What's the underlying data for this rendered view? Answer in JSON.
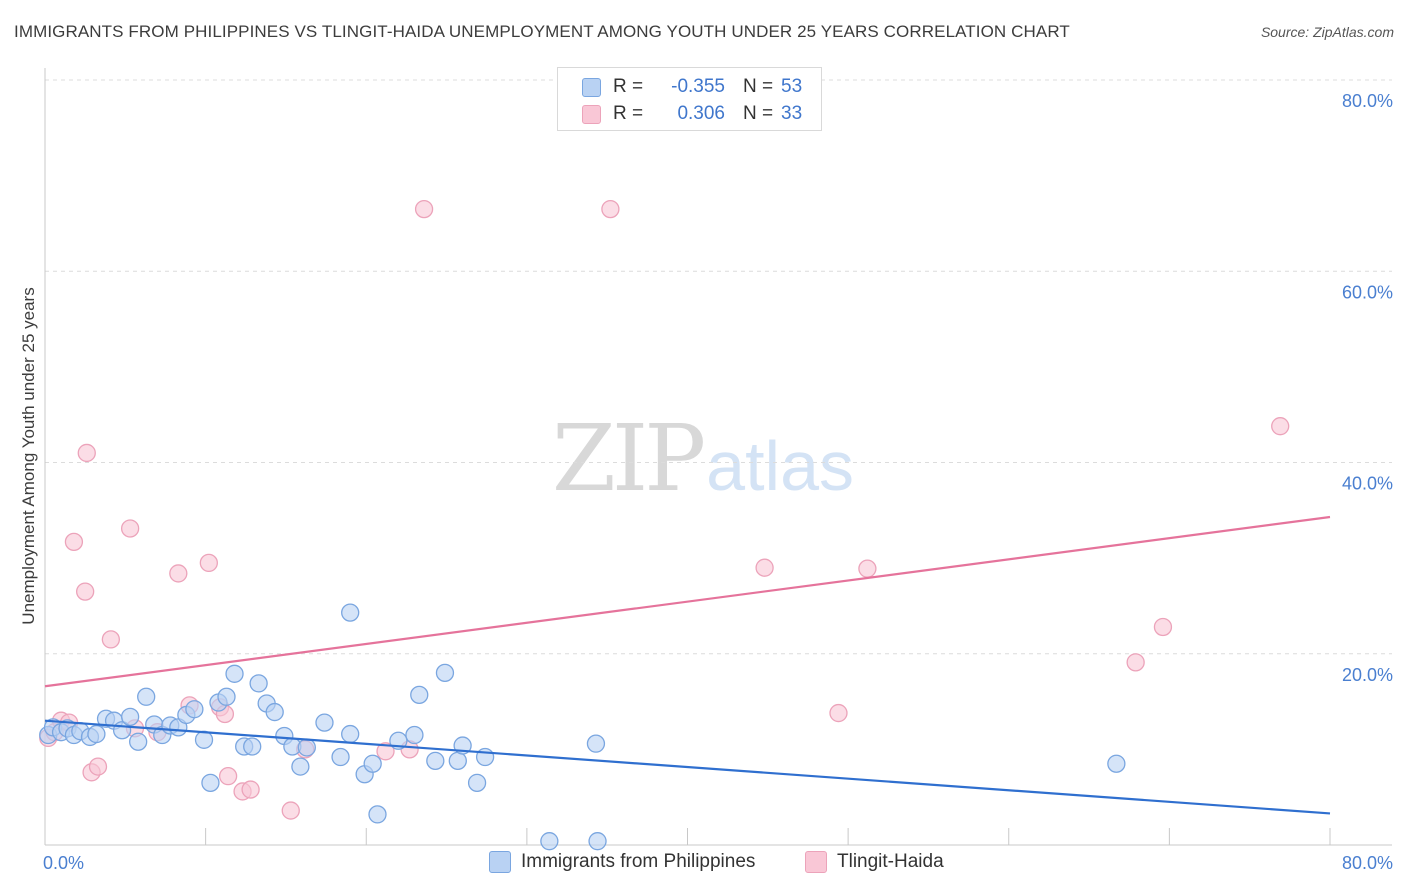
{
  "header": {
    "title": "IMMIGRANTS FROM PHILIPPINES VS TLINGIT-HAIDA UNEMPLOYMENT AMONG YOUTH UNDER 25 YEARS CORRELATION CHART",
    "source": "Source: ZipAtlas.com"
  },
  "watermark": {
    "zip": "ZIP",
    "atlas": "atlas"
  },
  "legend": {
    "philippines": {
      "r_label": "R =",
      "r_value": "-0.355",
      "n_label": "N =",
      "n_value": "53"
    },
    "tlingit": {
      "r_label": "R =",
      "r_value": "0.306",
      "n_label": "N =",
      "n_value": "33"
    }
  },
  "bottom_legend": {
    "philippines": "Immigrants from Philippines",
    "tlingit": "Tlingit-Haida"
  },
  "colors": {
    "blue_fill": "#b9d2f3",
    "blue_stroke": "#7aa6e0",
    "blue_line": "#2f6fcf",
    "pink_fill": "#f9c7d6",
    "pink_stroke": "#eca3ba",
    "pink_line": "#e5739b",
    "axis_text": "#4a7fd0"
  },
  "chart_data": {
    "type": "scatter",
    "title": "IMMIGRANTS FROM PHILIPPINES VS TLINGIT-HAIDA UNEMPLOYMENT AMONG YOUTH UNDER 25 YEARS CORRELATION CHART",
    "xlabel": "",
    "ylabel": "Unemployment Among Youth under 25 years",
    "xlim": [
      0,
      80
    ],
    "ylim": [
      0,
      80
    ],
    "x_tick_labels": [
      "0.0%",
      "80.0%"
    ],
    "y_ticks": [
      20,
      40,
      60,
      80
    ],
    "y_tick_labels": [
      "20.0%",
      "40.0%",
      "60.0%",
      "80.0%"
    ],
    "grid": true,
    "series": [
      {
        "name": "Immigrants from Philippines",
        "color": "#b9d2f3",
        "points": [
          {
            "x": 0.2,
            "y": 11.5
          },
          {
            "x": 0.5,
            "y": 12.3
          },
          {
            "x": 1.0,
            "y": 11.8
          },
          {
            "x": 1.4,
            "y": 12.2
          },
          {
            "x": 1.8,
            "y": 11.5
          },
          {
            "x": 2.2,
            "y": 11.9
          },
          {
            "x": 2.8,
            "y": 11.3
          },
          {
            "x": 3.2,
            "y": 11.6
          },
          {
            "x": 3.8,
            "y": 13.2
          },
          {
            "x": 4.3,
            "y": 13.0
          },
          {
            "x": 4.8,
            "y": 12.0
          },
          {
            "x": 5.3,
            "y": 13.4
          },
          {
            "x": 5.8,
            "y": 10.8
          },
          {
            "x": 6.3,
            "y": 15.5
          },
          {
            "x": 6.8,
            "y": 12.6
          },
          {
            "x": 7.3,
            "y": 11.5
          },
          {
            "x": 7.8,
            "y": 12.5
          },
          {
            "x": 8.3,
            "y": 12.3
          },
          {
            "x": 8.8,
            "y": 13.6
          },
          {
            "x": 9.3,
            "y": 14.2
          },
          {
            "x": 9.9,
            "y": 11.0
          },
          {
            "x": 10.3,
            "y": 6.5
          },
          {
            "x": 10.8,
            "y": 14.9
          },
          {
            "x": 11.3,
            "y": 15.5
          },
          {
            "x": 11.8,
            "y": 17.9
          },
          {
            "x": 12.4,
            "y": 10.3
          },
          {
            "x": 12.9,
            "y": 10.3
          },
          {
            "x": 13.3,
            "y": 16.9
          },
          {
            "x": 13.8,
            "y": 14.8
          },
          {
            "x": 14.3,
            "y": 13.9
          },
          {
            "x": 14.9,
            "y": 11.4
          },
          {
            "x": 15.4,
            "y": 10.3
          },
          {
            "x": 15.9,
            "y": 8.2
          },
          {
            "x": 16.3,
            "y": 10.2
          },
          {
            "x": 17.4,
            "y": 12.8
          },
          {
            "x": 18.4,
            "y": 9.2
          },
          {
            "x": 19.0,
            "y": 11.6
          },
          {
            "x": 19.0,
            "y": 24.3
          },
          {
            "x": 19.9,
            "y": 7.4
          },
          {
            "x": 20.4,
            "y": 8.5
          },
          {
            "x": 20.7,
            "y": 3.2
          },
          {
            "x": 22.0,
            "y": 10.9
          },
          {
            "x": 23.0,
            "y": 11.5
          },
          {
            "x": 23.3,
            "y": 15.7
          },
          {
            "x": 24.3,
            "y": 8.8
          },
          {
            "x": 24.9,
            "y": 18.0
          },
          {
            "x": 25.7,
            "y": 8.8
          },
          {
            "x": 26.0,
            "y": 10.4
          },
          {
            "x": 26.9,
            "y": 6.5
          },
          {
            "x": 27.4,
            "y": 9.2
          },
          {
            "x": 31.4,
            "y": 0.4
          },
          {
            "x": 34.3,
            "y": 10.6
          },
          {
            "x": 34.4,
            "y": 0.4
          },
          {
            "x": 66.7,
            "y": 8.5
          }
        ]
      },
      {
        "name": "Tlingit-Haida",
        "color": "#f9c7d6",
        "points": [
          {
            "x": 0.2,
            "y": 11.2
          },
          {
            "x": 0.6,
            "y": 11.8
          },
          {
            "x": 1.0,
            "y": 13.0
          },
          {
            "x": 1.5,
            "y": 12.8
          },
          {
            "x": 1.8,
            "y": 31.7
          },
          {
            "x": 2.5,
            "y": 26.5
          },
          {
            "x": 2.6,
            "y": 41.0
          },
          {
            "x": 2.9,
            "y": 7.6
          },
          {
            "x": 3.3,
            "y": 8.2
          },
          {
            "x": 4.1,
            "y": 21.5
          },
          {
            "x": 5.3,
            "y": 33.1
          },
          {
            "x": 5.6,
            "y": 12.2
          },
          {
            "x": 7.0,
            "y": 11.8
          },
          {
            "x": 8.3,
            "y": 28.4
          },
          {
            "x": 9.0,
            "y": 14.6
          },
          {
            "x": 10.2,
            "y": 29.5
          },
          {
            "x": 10.9,
            "y": 14.4
          },
          {
            "x": 11.2,
            "y": 13.7
          },
          {
            "x": 11.4,
            "y": 7.2
          },
          {
            "x": 12.3,
            "y": 5.6
          },
          {
            "x": 12.8,
            "y": 5.8
          },
          {
            "x": 15.3,
            "y": 3.6
          },
          {
            "x": 16.2,
            "y": 10.0
          },
          {
            "x": 21.2,
            "y": 9.8
          },
          {
            "x": 22.7,
            "y": 10.0
          },
          {
            "x": 23.6,
            "y": 66.5
          },
          {
            "x": 35.2,
            "y": 66.5
          },
          {
            "x": 44.8,
            "y": 29.0
          },
          {
            "x": 51.2,
            "y": 28.9
          },
          {
            "x": 49.4,
            "y": 13.8
          },
          {
            "x": 67.9,
            "y": 19.1
          },
          {
            "x": 69.6,
            "y": 22.8
          },
          {
            "x": 76.9,
            "y": 43.8
          }
        ]
      }
    ],
    "trend_lines": [
      {
        "name": "Immigrants from Philippines",
        "x": [
          0,
          80
        ],
        "y": [
          13.0,
          3.3
        ]
      },
      {
        "name": "Tlingit-Haida",
        "x": [
          0,
          80
        ],
        "y": [
          16.6,
          34.3
        ]
      }
    ]
  }
}
